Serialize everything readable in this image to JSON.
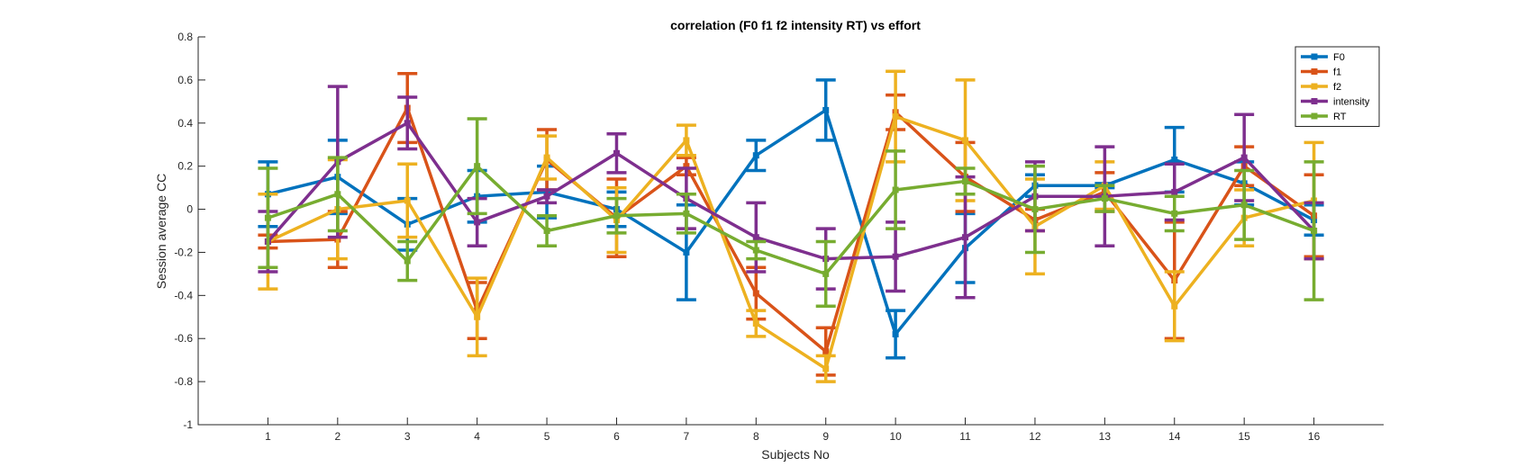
{
  "chart_data": {
    "type": "line",
    "title": "correlation (F0 f1 f2 intensity RT) vs effort",
    "xlabel": "Subjects No",
    "ylabel": "Session average CC",
    "x": [
      1,
      2,
      3,
      4,
      5,
      6,
      7,
      8,
      9,
      10,
      11,
      12,
      13,
      14,
      15,
      16
    ],
    "xlim": [
      0,
      17
    ],
    "ylim": [
      -1,
      0.8
    ],
    "yticks": [
      "-1",
      "-0.8",
      "-0.6",
      "-0.4",
      "-0.2",
      "0",
      "0.2",
      "0.4",
      "0.6",
      "0.8"
    ],
    "xticks": [
      "1",
      "2",
      "3",
      "4",
      "5",
      "6",
      "7",
      "8",
      "9",
      "10",
      "11",
      "12",
      "13",
      "14",
      "15",
      "16"
    ],
    "grid": false,
    "legend_position": "top-right",
    "error_bars": true,
    "series": [
      {
        "name": "F0",
        "color": "#0072BD",
        "values": [
          0.07,
          0.15,
          -0.07,
          0.06,
          0.08,
          0.0,
          -0.2,
          0.25,
          0.46,
          -0.58,
          -0.18,
          0.11,
          0.11,
          0.23,
          0.12,
          -0.05
        ],
        "errors": [
          0.15,
          0.17,
          0.12,
          0.12,
          0.12,
          0.08,
          0.22,
          0.07,
          0.14,
          0.11,
          0.16,
          0.05,
          0.01,
          0.15,
          0.1,
          0.07
        ]
      },
      {
        "name": "f1",
        "color": "#D95319",
        "values": [
          -0.15,
          -0.14,
          0.47,
          -0.47,
          0.23,
          -0.04,
          0.2,
          -0.39,
          -0.66,
          0.45,
          0.15,
          -0.05,
          0.08,
          -0.33,
          0.2,
          -0.03
        ],
        "errors": [
          0.03,
          0.13,
          0.16,
          0.13,
          0.14,
          0.18,
          0.04,
          0.12,
          0.11,
          0.08,
          0.16,
          0.05,
          0.09,
          0.27,
          0.09,
          0.19
        ]
      },
      {
        "name": "f2",
        "color": "#EDB120",
        "values": [
          -0.15,
          0.0,
          0.04,
          -0.5,
          0.24,
          -0.05,
          0.32,
          -0.53,
          -0.74,
          0.43,
          0.32,
          -0.08,
          0.11,
          -0.45,
          -0.04,
          0.04
        ],
        "errors": [
          0.22,
          0.23,
          0.17,
          0.18,
          0.1,
          0.15,
          0.07,
          0.06,
          0.06,
          0.21,
          0.28,
          0.22,
          0.11,
          0.16,
          0.13,
          0.27
        ]
      },
      {
        "name": "intensity",
        "color": "#7E2F8E",
        "values": [
          -0.15,
          0.22,
          0.4,
          -0.06,
          0.06,
          0.26,
          0.05,
          -0.13,
          -0.23,
          -0.22,
          -0.13,
          0.06,
          0.06,
          0.08,
          0.24,
          -0.1
        ],
        "errors": [
          0.14,
          0.35,
          0.12,
          0.11,
          0.03,
          0.09,
          0.14,
          0.16,
          0.14,
          0.16,
          0.28,
          0.16,
          0.23,
          0.13,
          0.2,
          0.13
        ]
      },
      {
        "name": "RT",
        "color": "#77AC30",
        "values": [
          -0.04,
          0.07,
          -0.24,
          0.2,
          -0.1,
          -0.03,
          -0.02,
          -0.19,
          -0.3,
          0.09,
          0.13,
          0.0,
          0.05,
          -0.02,
          0.02,
          -0.1
        ],
        "errors": [
          0.23,
          0.17,
          0.09,
          0.22,
          0.07,
          0.08,
          0.09,
          0.04,
          0.15,
          0.18,
          0.06,
          0.2,
          0.06,
          0.08,
          0.16,
          0.32
        ]
      }
    ]
  }
}
